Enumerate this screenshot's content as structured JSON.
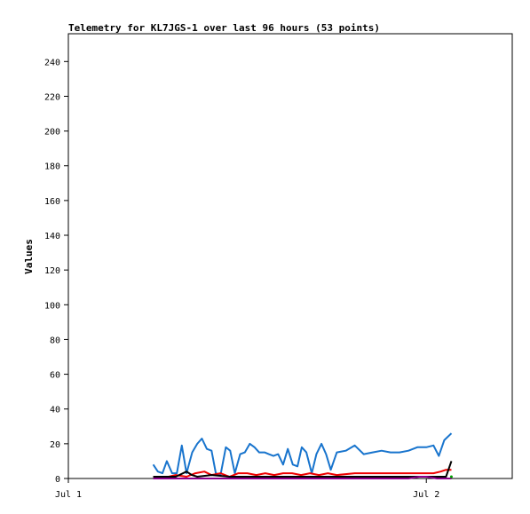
{
  "chart_data": {
    "type": "line",
    "title": "Telemetry for KL7JGS-1 over last 96 hours (53 points)",
    "xlabel": "",
    "ylabel": "Values",
    "ylim": [
      0,
      256
    ],
    "xlim": [
      0,
      1.24
    ],
    "y_ticks": [
      0,
      20,
      40,
      60,
      80,
      100,
      120,
      140,
      160,
      180,
      200,
      220,
      240
    ],
    "x_ticks": [
      {
        "value": 0,
        "label": "Jul 1"
      },
      {
        "value": 1,
        "label": "Jul 2"
      }
    ],
    "grid": false,
    "legend": "none",
    "series": [
      {
        "color": "#1874cd",
        "x": [
          0.237,
          0.25,
          0.263,
          0.275,
          0.29,
          0.303,
          0.317,
          0.33,
          0.346,
          0.36,
          0.373,
          0.387,
          0.4,
          0.412,
          0.425,
          0.44,
          0.452,
          0.465,
          0.48,
          0.493,
          0.507,
          0.52,
          0.533,
          0.548,
          0.56,
          0.573,
          0.586,
          0.6,
          0.613,
          0.627,
          0.64,
          0.652,
          0.665,
          0.68,
          0.693,
          0.707,
          0.72,
          0.733,
          0.75,
          0.775,
          0.8,
          0.825,
          0.85,
          0.875,
          0.9,
          0.925,
          0.95,
          0.975,
          1.0,
          1.02,
          1.035,
          1.05,
          1.07
        ],
        "y": [
          8,
          4,
          3,
          10,
          3,
          3,
          19,
          3,
          15,
          20,
          23,
          17,
          16,
          3,
          2,
          18,
          16,
          3,
          14,
          15,
          20,
          18,
          15,
          15,
          14,
          13,
          14,
          8,
          17,
          8,
          7,
          18,
          15,
          3,
          14,
          20,
          14,
          5,
          15,
          16,
          19,
          14,
          15,
          16,
          15,
          15,
          16,
          18,
          18,
          19,
          13,
          22,
          26
        ]
      },
      {
        "color": "#ee0000",
        "x": [
          0.237,
          0.28,
          0.3,
          0.33,
          0.355,
          0.38,
          0.4,
          0.425,
          0.45,
          0.475,
          0.5,
          0.525,
          0.55,
          0.575,
          0.6,
          0.625,
          0.65,
          0.675,
          0.7,
          0.725,
          0.75,
          0.8,
          0.85,
          0.9,
          0.95,
          1.0,
          1.02,
          1.04,
          1.055,
          1.07
        ],
        "y": [
          1,
          1,
          2,
          1,
          3,
          4,
          2,
          3,
          1,
          3,
          3,
          2,
          3,
          2,
          3,
          3,
          2,
          3,
          2,
          3,
          2,
          3,
          3,
          3,
          3,
          3,
          3,
          4,
          5,
          5
        ]
      },
      {
        "color": "#000000",
        "x": [
          0.237,
          0.28,
          0.3,
          0.33,
          0.345,
          0.36,
          0.4,
          0.45,
          0.5,
          0.55,
          0.6,
          0.65,
          0.7,
          0.75,
          0.8,
          0.85,
          0.9,
          0.95,
          1.0,
          1.03,
          1.055,
          1.07
        ],
        "y": [
          1,
          1,
          1,
          4,
          2,
          1,
          2,
          1,
          1,
          1,
          1,
          1,
          1,
          1,
          1,
          1,
          1,
          1,
          1,
          1,
          1,
          10
        ]
      },
      {
        "color": "#8b008b",
        "x": [
          0.237,
          0.3,
          0.35,
          0.4,
          0.45,
          0.5,
          0.55,
          0.6,
          0.65,
          0.7,
          0.75,
          0.8,
          0.85,
          0.9,
          0.95,
          0.98,
          1.0,
          1.03,
          1.07
        ],
        "y": [
          0,
          0,
          0,
          0,
          0,
          0,
          0,
          0,
          0,
          0,
          0,
          0,
          0,
          0,
          0,
          1,
          1,
          0,
          0
        ]
      },
      {
        "color": "#00a000",
        "x": [
          1.07
        ],
        "y": [
          1
        ]
      }
    ]
  }
}
